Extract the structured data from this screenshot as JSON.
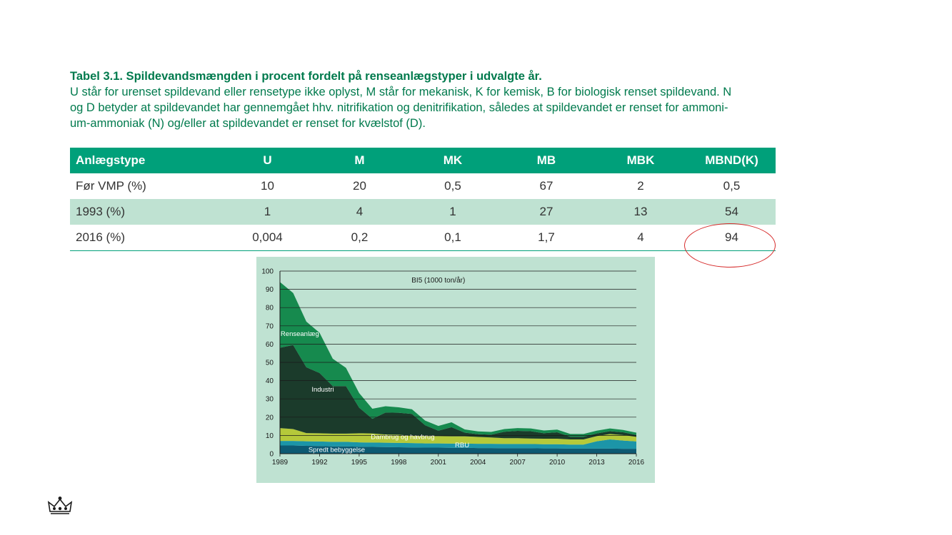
{
  "caption": {
    "title": "Tabel 3.1. Spildevandsmængden i procent fordelt på renseanlægstyper i udvalgte år.",
    "line1": "U står for urenset spildevand eller rensetype ikke oplyst, M står for mekanisk, K for kemisk, B for biologisk renset spildevand. N",
    "line2": "og D betyder at spildevandet har gennemgået hhv. nitrifikation og denitrifikation, således at spildevandet er renset for ammoni-",
    "line3": "um-ammoniak (N) og/eller at spildevandet er renset for kvælstof (D)."
  },
  "table": {
    "headers": [
      "Anlægstype",
      "U",
      "M",
      "MK",
      "MB",
      "MBK",
      "MBND(K)"
    ],
    "rows": [
      [
        "Før VMP (%)",
        "10",
        "20",
        "0,5",
        "67",
        "2",
        "0,5"
      ],
      [
        "1993 (%)",
        "1",
        "4",
        "1",
        "27",
        "13",
        "54"
      ],
      [
        "2016 (%)",
        "0,004",
        "0,2",
        "0,1",
        "1,7",
        "4",
        "94"
      ]
    ],
    "highlight": "94"
  },
  "colors": {
    "caption_green": "#007a4d",
    "header_bg": "#00a07a",
    "alt_row_bg": "#bfe2d2",
    "highlight_circle": "#d62a2a",
    "chart_bg": "#bfe2d2"
  },
  "chart_data": {
    "type": "area",
    "title": "BI5 (1000 ton/år)",
    "stacked": true,
    "x": [
      1989,
      1990,
      1991,
      1992,
      1993,
      1994,
      1995,
      1996,
      1997,
      1998,
      1999,
      2000,
      2001,
      2002,
      2003,
      2004,
      2005,
      2006,
      2007,
      2008,
      2009,
      2010,
      2011,
      2012,
      2013,
      2014,
      2015,
      2016
    ],
    "ylim": [
      0,
      100
    ],
    "yticks": [
      0,
      10,
      20,
      30,
      40,
      50,
      60,
      70,
      80,
      90,
      100
    ],
    "xticks": [
      1989,
      1992,
      1995,
      1998,
      2001,
      2004,
      2007,
      2010,
      2013,
      2016
    ],
    "grid": true,
    "series": [
      {
        "name": "Spredt bebyggelse",
        "color": "#0d5a73",
        "values": [
          4.5,
          4.5,
          4.3,
          4.2,
          4.0,
          4.0,
          3.8,
          3.7,
          3.6,
          3.5,
          3.4,
          3.3,
          3.3,
          3.2,
          3.2,
          3.1,
          3.1,
          3.0,
          3.0,
          3.0,
          2.9,
          2.9,
          2.8,
          2.8,
          2.8,
          2.8,
          2.7,
          2.7
        ]
      },
      {
        "name": "RBU",
        "color": "#1c95a8",
        "values": [
          2.5,
          2.5,
          2.5,
          2.5,
          2.5,
          2.5,
          2.4,
          2.4,
          2.4,
          2.4,
          2.4,
          2.3,
          2.3,
          2.3,
          2.3,
          2.3,
          2.3,
          2.3,
          2.3,
          2.3,
          2.3,
          2.3,
          2.2,
          2.2,
          4.0,
          5.0,
          4.5,
          4.0
        ]
      },
      {
        "name": "Dambrug og havbrug",
        "color": "#b5c93a",
        "values": [
          7.0,
          6.5,
          4.5,
          4.5,
          4.5,
          4.5,
          5.0,
          5.0,
          4.5,
          4.5,
          4.0,
          4.0,
          4.0,
          4.0,
          4.0,
          3.8,
          3.5,
          3.2,
          3.2,
          3.0,
          3.0,
          3.0,
          2.8,
          2.8,
          2.8,
          3.0,
          3.0,
          2.5
        ]
      },
      {
        "name": "Industri",
        "color": "#1b3b2b",
        "values": [
          44,
          46,
          36,
          33,
          26,
          26,
          14,
          8,
          12,
          12,
          12,
          6,
          3,
          5,
          2,
          1.5,
          1.5,
          3.5,
          4.0,
          4.0,
          3.0,
          3.5,
          1.5,
          1.5,
          1.5,
          1.5,
          1.5,
          1.0
        ]
      },
      {
        "name": "Renseanlæg",
        "color": "#168a4e",
        "values": [
          36,
          28.5,
          25,
          22,
          15,
          10,
          8,
          5.5,
          3.5,
          3.0,
          2.5,
          2.5,
          2.6,
          2.7,
          1.8,
          1.5,
          1.5,
          1.5,
          1.5,
          1.5,
          1.5,
          1.5,
          1.5,
          1.5,
          1.5,
          1.5,
          1.3,
          1.3
        ]
      }
    ],
    "annotations": [
      "Renseanlæg",
      "Industri",
      "Dambrug og havbrug",
      "RBU",
      "Spredt bebyggelse"
    ]
  },
  "logo": {
    "icon": "crown-icon"
  }
}
